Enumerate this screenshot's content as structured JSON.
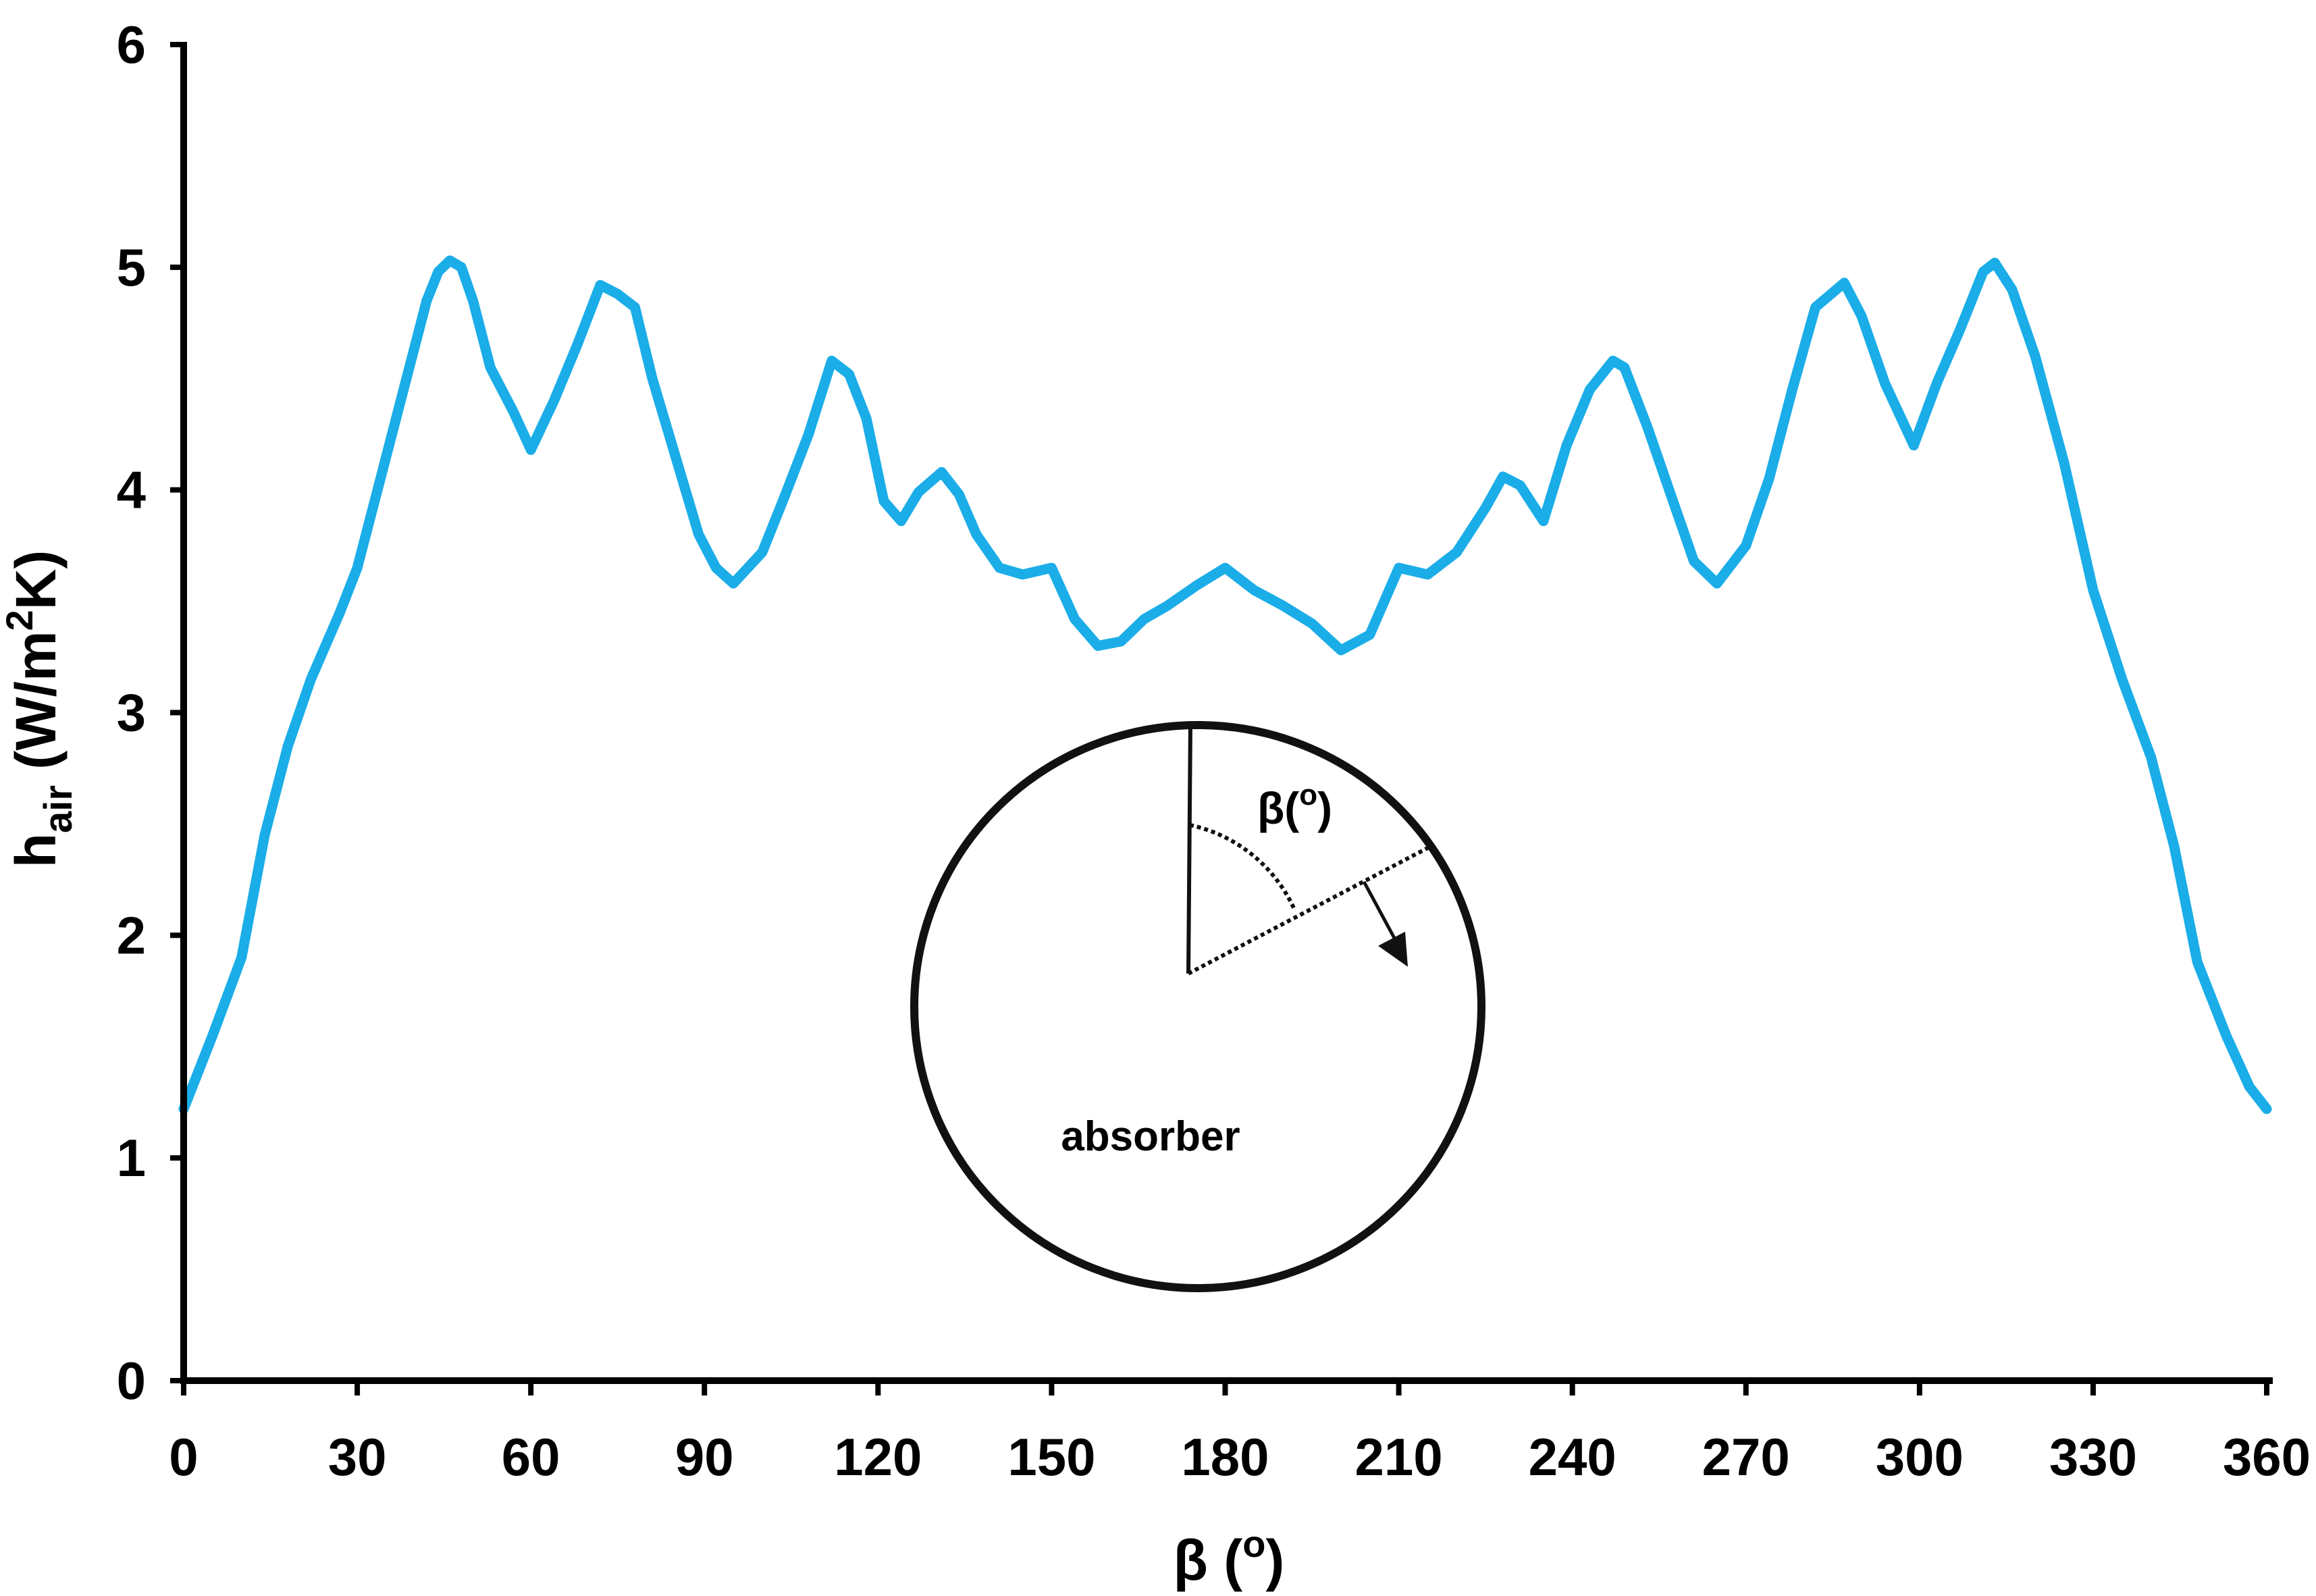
{
  "chart_data": {
    "type": "line",
    "xlabel": "β (o)",
    "ylabel": "hair (W/m2K)",
    "ylabel_parts": {
      "h": "h",
      "sub": "air",
      "pre": " (W/m",
      "sup": "2",
      "post": "K)"
    },
    "xlabel_parts": {
      "main": "β (",
      "sup": "o",
      "close": ")"
    },
    "xlim": [
      0,
      360
    ],
    "ylim": [
      0,
      6
    ],
    "x_ticks": [
      0,
      30,
      60,
      90,
      120,
      150,
      180,
      210,
      240,
      270,
      300,
      330,
      360
    ],
    "y_ticks": [
      0,
      1,
      2,
      3,
      4,
      5,
      6
    ],
    "grid": false,
    "line_color": "#1AADE8",
    "series": [
      {
        "x": [
          0,
          5,
          10,
          14,
          18,
          22,
          27,
          30,
          33,
          36,
          39,
          42,
          44,
          46,
          48,
          50,
          53,
          57,
          60,
          64,
          68,
          72,
          75,
          78,
          81,
          85,
          89,
          92,
          95,
          100,
          104,
          108,
          112,
          115,
          118,
          121,
          124,
          127,
          131,
          134,
          137,
          141,
          145,
          150,
          154,
          158,
          162,
          166,
          170,
          175,
          180,
          185,
          190,
          195,
          200,
          205,
          210,
          215,
          220,
          225,
          228,
          231,
          235,
          239,
          243,
          247,
          249,
          253,
          257,
          261,
          265,
          270,
          274,
          278,
          282,
          287,
          290,
          294,
          299,
          303,
          307,
          311,
          313,
          316,
          320,
          325,
          330,
          335,
          340,
          344,
          348,
          353,
          357,
          360
        ],
        "y": [
          1.22,
          1.55,
          1.9,
          2.45,
          2.85,
          3.15,
          3.45,
          3.65,
          3.95,
          4.25,
          4.55,
          4.85,
          4.98,
          5.03,
          5.0,
          4.85,
          4.55,
          4.35,
          4.18,
          4.4,
          4.65,
          4.92,
          4.88,
          4.82,
          4.5,
          4.15,
          3.8,
          3.65,
          3.58,
          3.72,
          3.98,
          4.25,
          4.58,
          4.52,
          4.32,
          3.95,
          3.86,
          3.99,
          4.08,
          3.98,
          3.8,
          3.65,
          3.62,
          3.65,
          3.42,
          3.3,
          3.32,
          3.42,
          3.48,
          3.57,
          3.65,
          3.55,
          3.48,
          3.4,
          3.28,
          3.35,
          3.65,
          3.62,
          3.72,
          3.92,
          4.06,
          4.02,
          3.86,
          4.2,
          4.45,
          4.58,
          4.55,
          4.28,
          3.98,
          3.68,
          3.58,
          3.75,
          4.05,
          4.45,
          4.82,
          4.93,
          4.78,
          4.48,
          4.2,
          4.48,
          4.72,
          4.98,
          5.02,
          4.9,
          4.6,
          4.12,
          3.55,
          3.15,
          2.8,
          2.4,
          1.88,
          1.55,
          1.32,
          1.22
        ]
      }
    ]
  },
  "inset": {
    "angle_label_main": "β(",
    "angle_label_sup": "o",
    "angle_label_close": ")",
    "body_label": "absorber"
  }
}
